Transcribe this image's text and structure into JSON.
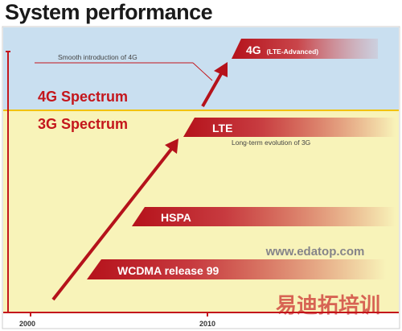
{
  "title": "System performance",
  "regions": {
    "upper_label": "4G Spectrum",
    "lower_label": "3G Spectrum"
  },
  "annotations": {
    "smooth_intro": "Smooth introduction of 4G",
    "lte_desc": "Long-term evolution of 3G"
  },
  "bands": {
    "g4_main": "4G",
    "g4_sub": "(LTE-Advanced)",
    "lte": "LTE",
    "hspa": "HSPA",
    "wcdma": "WCDMA release 99"
  },
  "axis": {
    "tick_2000": "2000",
    "tick_2010": "2010"
  },
  "watermark": {
    "chinese": "易迪拓培训",
    "url": "www.edatop.com"
  },
  "colors": {
    "upper_bg": "#c9dff0",
    "lower_bg": "#f8f3b9",
    "accent_red": "#c4161c",
    "divider_yellow": "#f2c200"
  }
}
